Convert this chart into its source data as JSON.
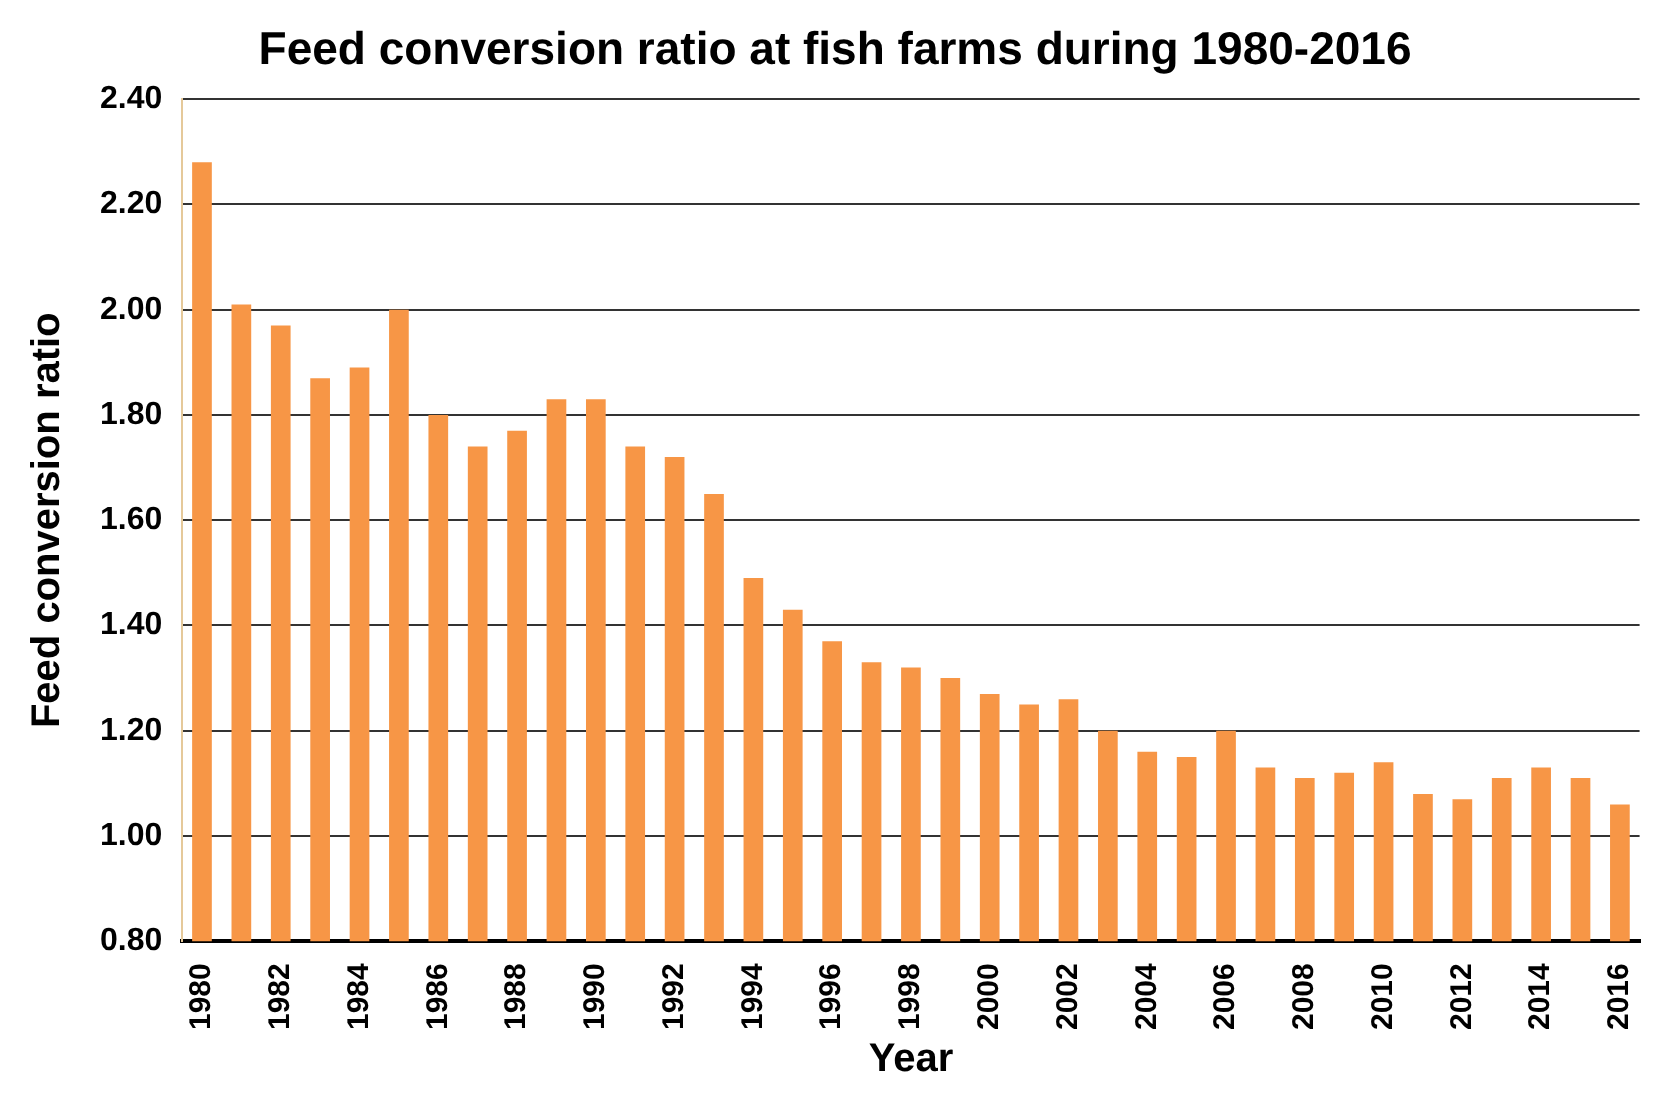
{
  "chart_data": {
    "type": "bar",
    "title": "Feed conversion ratio at fish farms during 1980-2016",
    "xlabel": "Year",
    "ylabel": "Feed conversion ratio",
    "categories": [
      "1980",
      null,
      "1982",
      null,
      "1984",
      null,
      "1986",
      null,
      "1988",
      null,
      "1990",
      null,
      "1992",
      null,
      "1994",
      null,
      "1996",
      null,
      "1998",
      null,
      "2000",
      null,
      "2002",
      null,
      "2004",
      null,
      "2006",
      null,
      "2008",
      null,
      "2010",
      null,
      "2012",
      null,
      "2014",
      null,
      "2016"
    ],
    "values": [
      2.28,
      2.01,
      1.97,
      1.87,
      1.89,
      2.0,
      1.8,
      1.74,
      1.77,
      1.83,
      1.83,
      1.74,
      1.72,
      1.65,
      1.49,
      1.43,
      1.37,
      1.33,
      1.32,
      1.3,
      1.27,
      1.25,
      1.26,
      1.2,
      1.16,
      1.15,
      1.2,
      1.13,
      1.11,
      1.12,
      1.14,
      1.08,
      1.07,
      1.11,
      1.13,
      1.11,
      1.06
    ],
    "color": "#f79646",
    "ylim": [
      0.8,
      2.4
    ],
    "yticks": [
      {
        "value": 0.8,
        "label": "0.80"
      },
      {
        "value": 1.0,
        "label": "1.00"
      },
      {
        "value": 1.2,
        "label": "1.20"
      },
      {
        "value": 1.4,
        "label": "1.40"
      },
      {
        "value": 1.6,
        "label": "1.60"
      },
      {
        "value": 1.8,
        "label": "1.80"
      },
      {
        "value": 2.0,
        "label": "2.00"
      },
      {
        "value": 2.2,
        "label": "2.20"
      },
      {
        "value": 2.4,
        "label": "2.40"
      }
    ],
    "grid": "y",
    "legend": false
  }
}
